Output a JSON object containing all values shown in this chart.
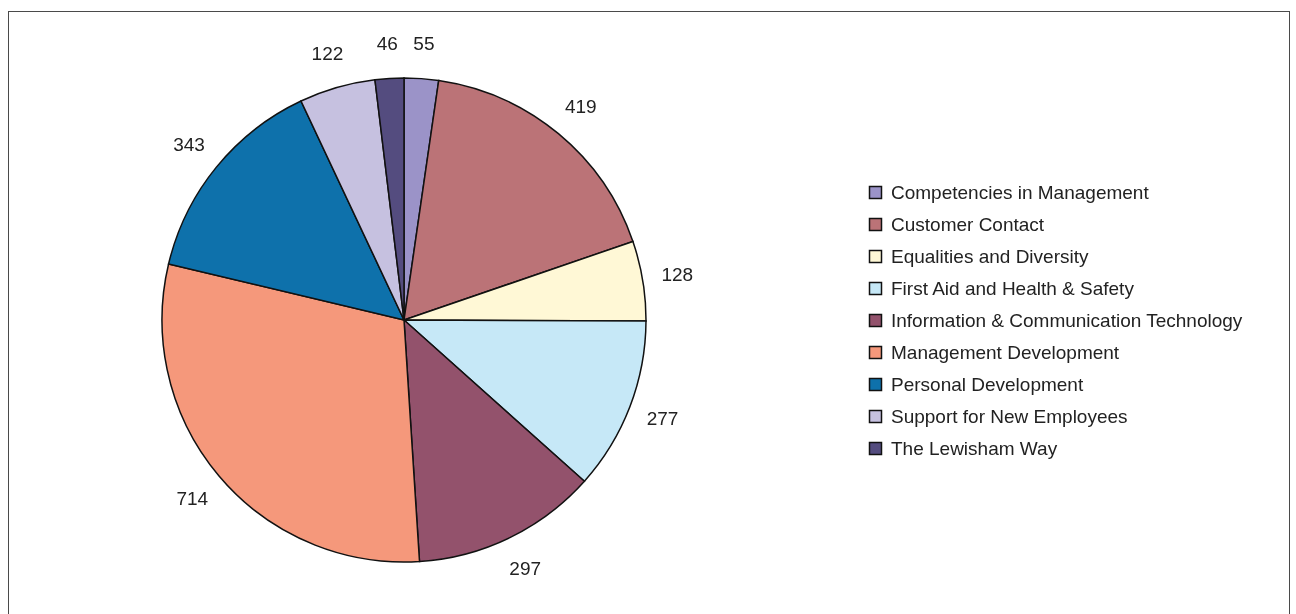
{
  "chart_data": {
    "type": "pie",
    "categories": [
      "Competencies in Management",
      "Customer Contact",
      "Equalities and Diversity",
      "First Aid and Health & Safety",
      "Information & Communication Technology",
      "Management Development",
      "Personal Development",
      "Support for New Employees",
      "The Lewisham Way"
    ],
    "values": [
      55,
      419,
      128,
      277,
      297,
      714,
      343,
      122,
      46
    ],
    "colors": [
      "#9b93c8",
      "#bb7377",
      "#fff8d6",
      "#c6e8f7",
      "#93526c",
      "#f5987b",
      "#0e71ab",
      "#c6c1e0",
      "#544c7f"
    ],
    "data_labels": true,
    "legend": "right"
  }
}
